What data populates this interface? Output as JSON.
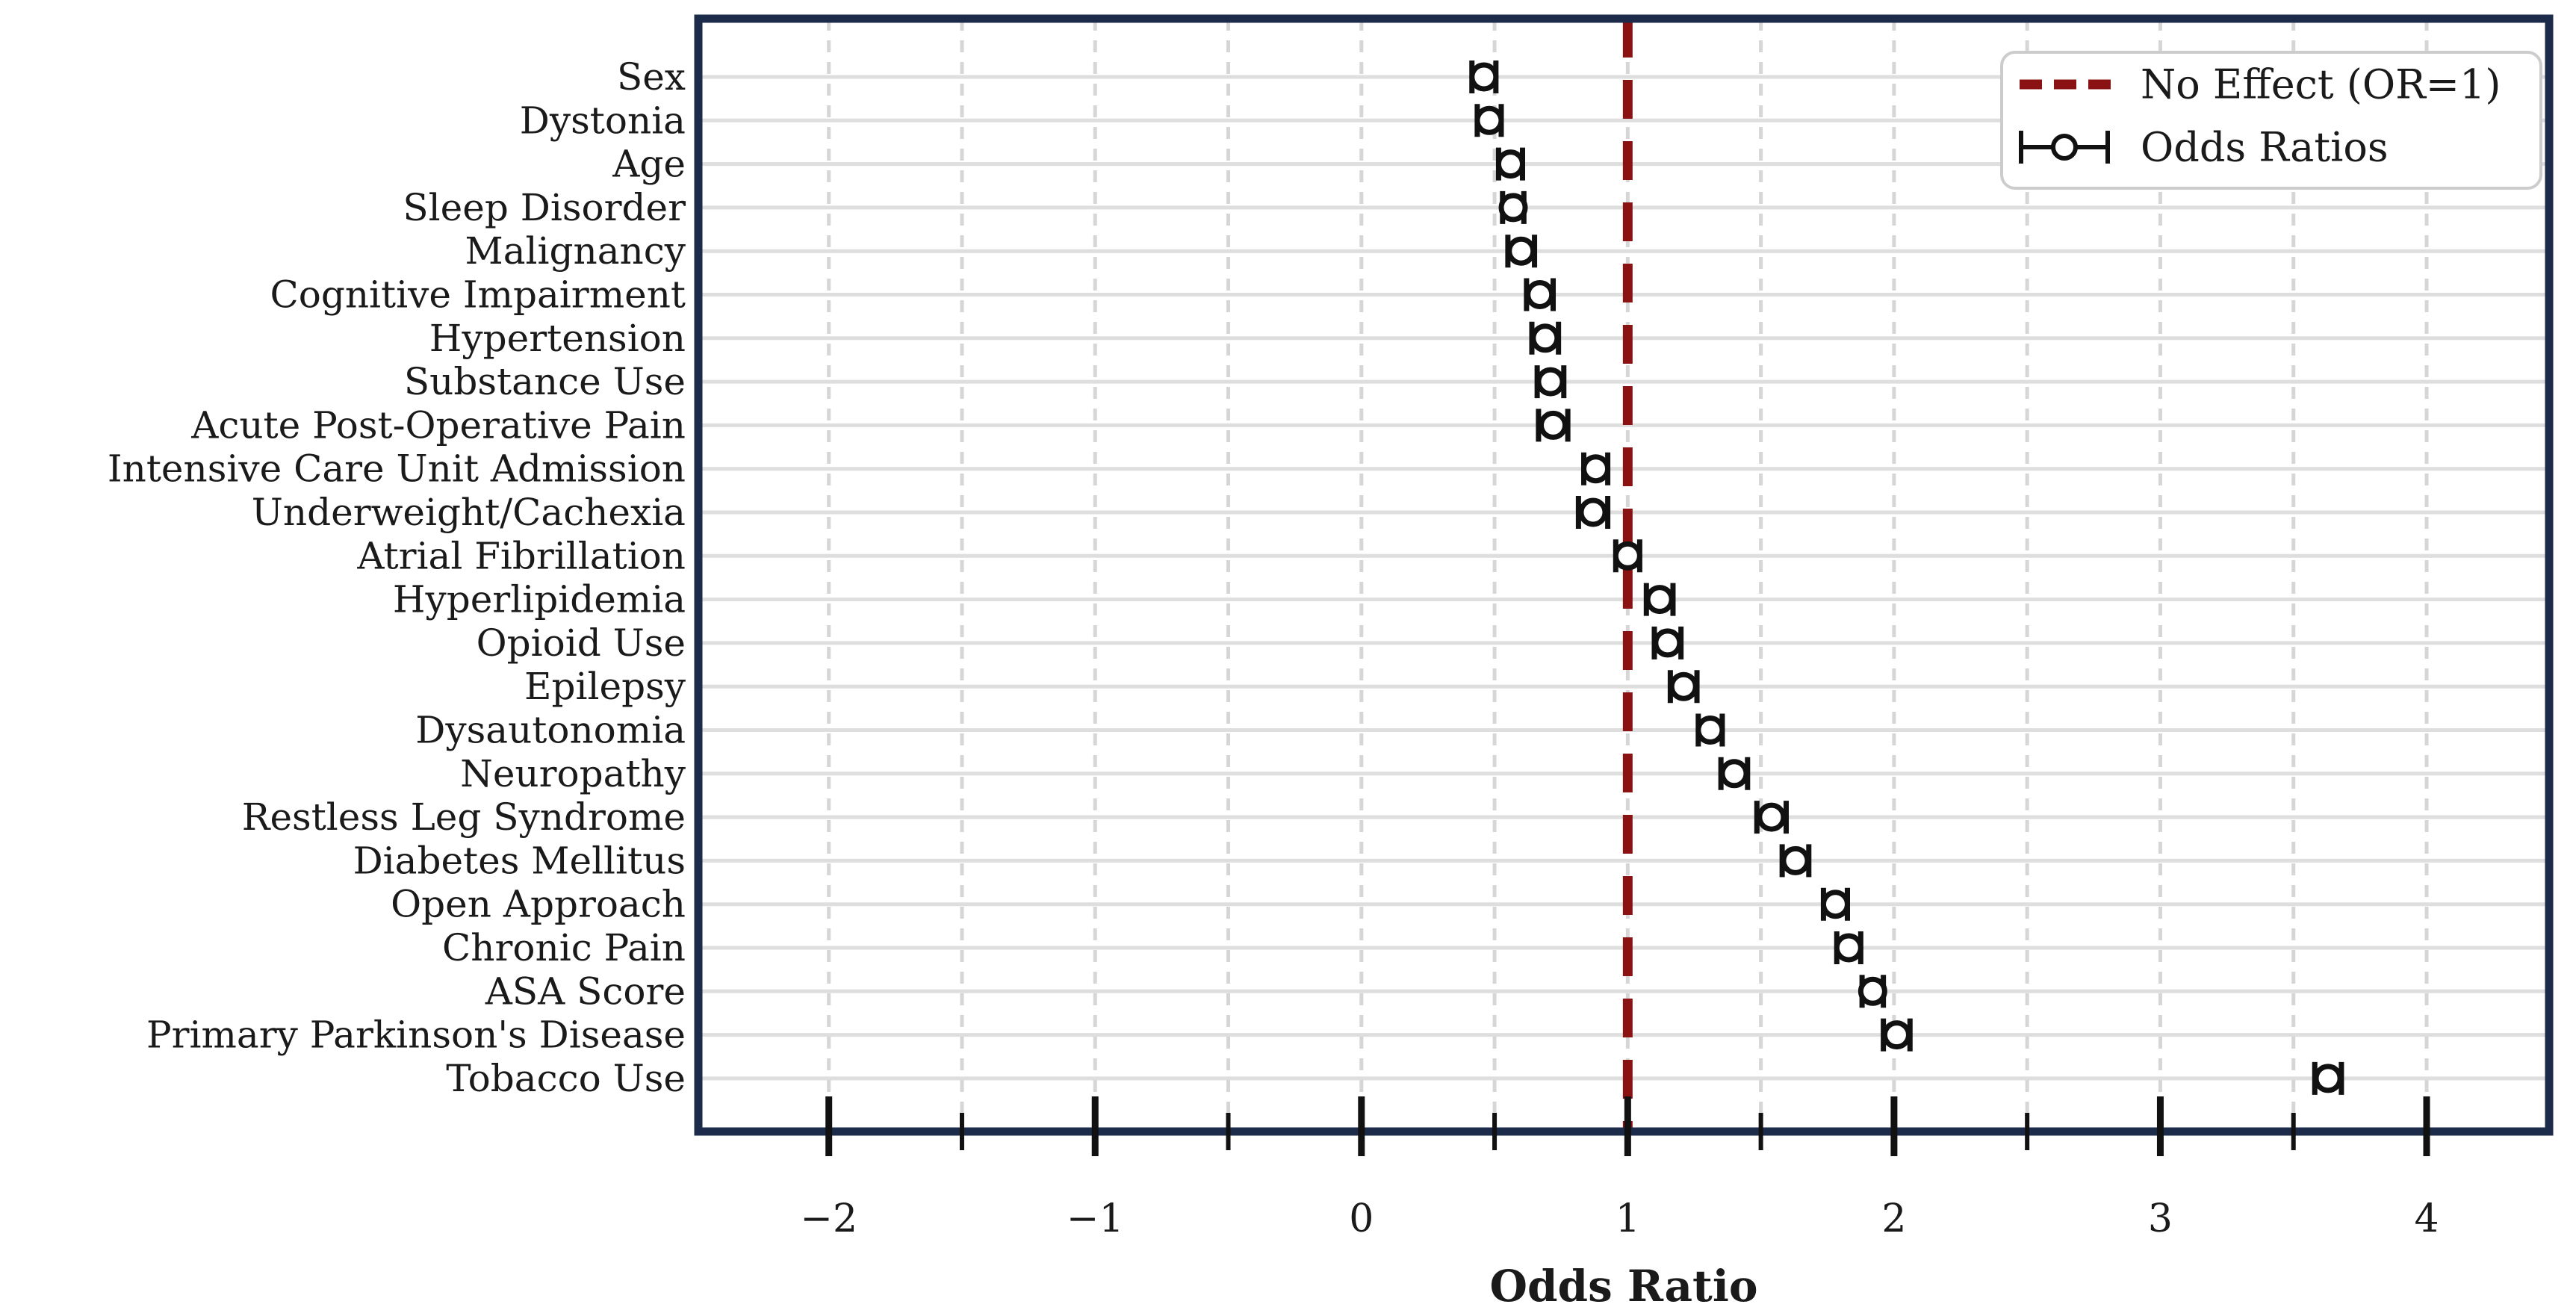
{
  "colors": {
    "plot_border": "#1c2b4a",
    "no_effect_line": "#8b1212",
    "h_gridline": "#dedede",
    "v_gridline": "#d6d6d6",
    "marker": "#111111",
    "marker_face": "#ffffff",
    "text": "#1a1a1a",
    "legend_border": "#cccccc",
    "background": "#ffffff"
  },
  "chart_data": {
    "type": "scatter",
    "subtype": "horizontal-errorbar-forest-plot",
    "title": "",
    "xlabel": "Odds Ratio",
    "ylabel": "",
    "xlim": [
      -2.49,
      4.46
    ],
    "grid": "on",
    "legend_position": "upper right",
    "categories": [
      "Sex",
      "Dystonia",
      "Age",
      "Sleep Disorder",
      "Malignancy",
      "Cognitive Impairment",
      "Hypertension",
      "Substance Use",
      "Acute Post-Operative Pain",
      "Intensive Care Unit Admission",
      "Underweight/Cachexia",
      "Atrial Fibrillation",
      "Hyperlipidemia",
      "Opioid Use",
      "Epilepsy",
      "Dysautonomia",
      "Neuropathy",
      "Restless Leg Syndrome",
      "Diabetes Mellitus",
      "Open Approach",
      "Chronic Pain",
      "ASA Score",
      "Primary Parkinson's Disease",
      "Tobacco Use"
    ],
    "series": [
      {
        "name": "Odds Ratios",
        "odds_ratios": [
          0.46,
          0.48,
          0.56,
          0.57,
          0.6,
          0.67,
          0.69,
          0.71,
          0.72,
          0.88,
          0.87,
          1.0,
          1.12,
          1.15,
          1.21,
          1.31,
          1.4,
          1.54,
          1.63,
          1.78,
          1.83,
          1.92,
          2.01,
          3.63
        ],
        "ci_half_width": [
          0.045,
          0.045,
          0.045,
          0.04,
          0.05,
          0.05,
          0.05,
          0.05,
          0.055,
          0.045,
          0.055,
          0.045,
          0.05,
          0.05,
          0.05,
          0.045,
          0.05,
          0.055,
          0.05,
          0.045,
          0.045,
          0.04,
          0.05,
          0.05
        ]
      }
    ],
    "reference_line": {
      "x": 1,
      "style": "dashed",
      "color": "#8b1212"
    },
    "x_ticks": [
      {
        "value": -2,
        "label": "−2"
      },
      {
        "value": -1,
        "label": "−1"
      },
      {
        "value": 0,
        "label": "0"
      },
      {
        "value": 1,
        "label": "1"
      },
      {
        "value": 2,
        "label": "2"
      },
      {
        "value": 3,
        "label": "3"
      },
      {
        "value": 4,
        "label": "4"
      }
    ],
    "x_minor_ticks": [
      -1.5,
      -0.5,
      0.5,
      1.5,
      2.5,
      3.5
    ],
    "v_gridline_step": 0.5,
    "v_gridline_range": [
      -2,
      4
    ],
    "legend": [
      {
        "label": "No Effect (OR=1)",
        "symbol": "dashed-line"
      },
      {
        "label": "Odds Ratios",
        "symbol": "errorbar-circle"
      }
    ]
  }
}
